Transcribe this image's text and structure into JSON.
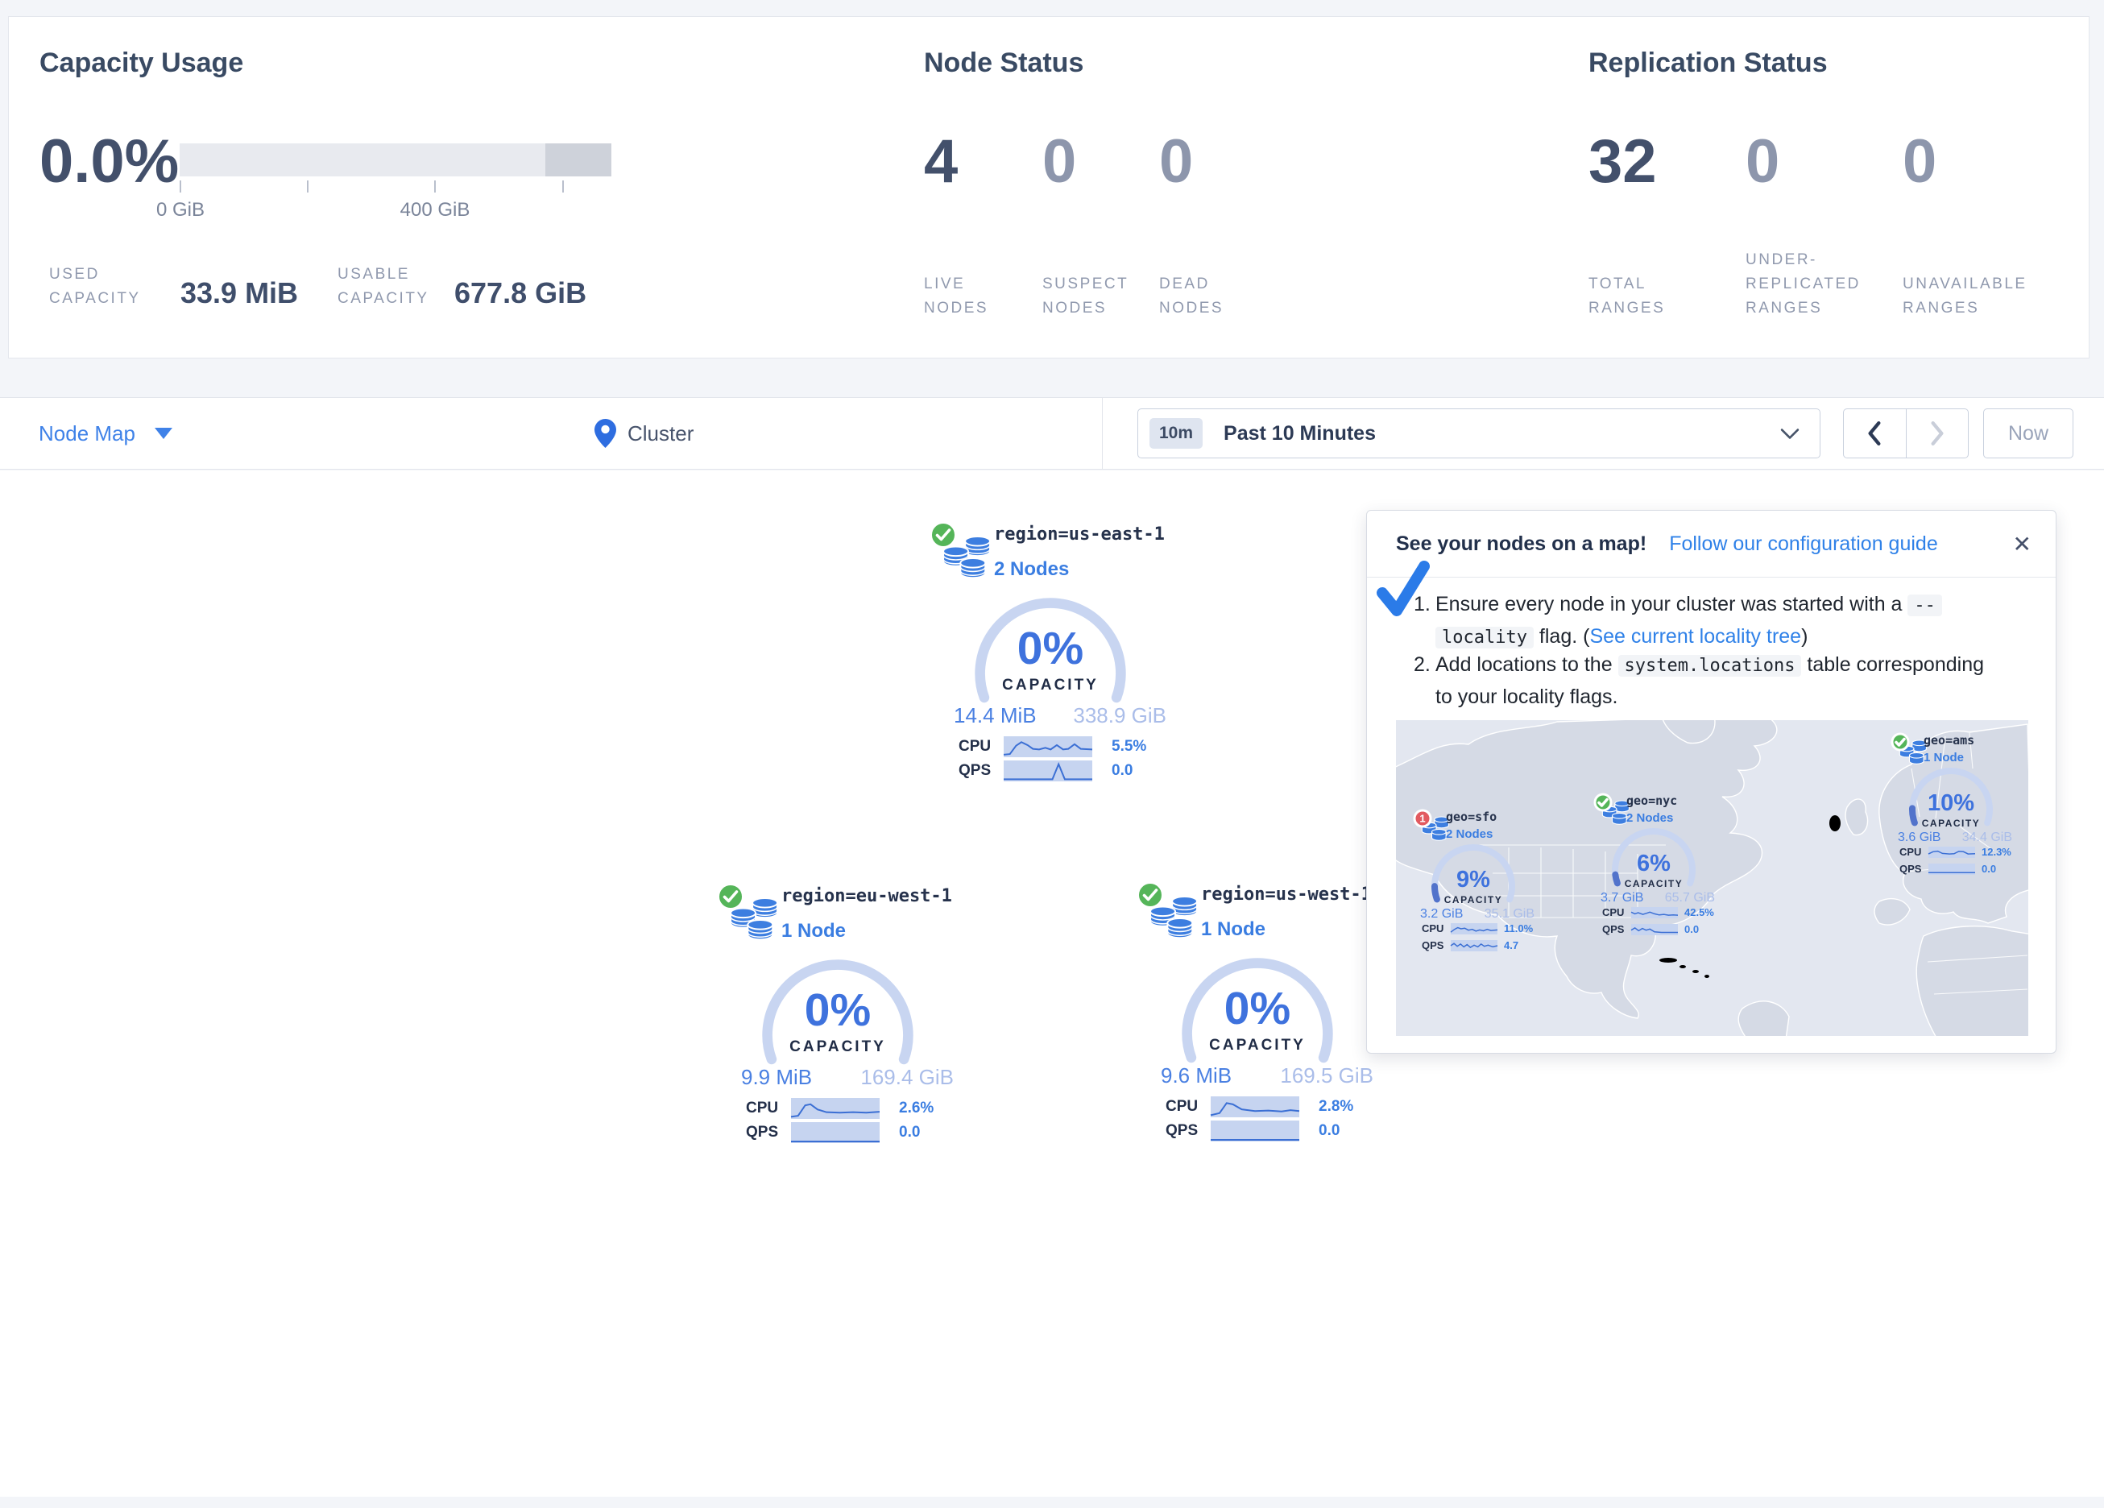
{
  "stats": {
    "capacity": {
      "title": "Capacity Usage",
      "percent": "0.0%",
      "tick0": "0 GiB",
      "tick1": "400 GiB",
      "used_label_top": "USED",
      "used_label_bottom": "CAPACITY",
      "used_value": "33.9 MiB",
      "usable_label_top": "USABLE",
      "usable_label_bottom": "CAPACITY",
      "usable_value": "677.8 GiB"
    },
    "nodes": {
      "title": "Node Status",
      "items": [
        {
          "value": "4",
          "label_lines": [
            "LIVE",
            "NODES"
          ]
        },
        {
          "value": "0",
          "label_lines": [
            "SUSPECT",
            "NODES"
          ]
        },
        {
          "value": "0",
          "label_lines": [
            "DEAD",
            "NODES"
          ]
        }
      ]
    },
    "replication": {
      "title": "Replication Status",
      "items": [
        {
          "value": "32",
          "label_lines": [
            "TOTAL",
            "RANGES"
          ]
        },
        {
          "value": "0",
          "label_lines": [
            "UNDER-",
            "REPLICATED",
            "RANGES"
          ]
        },
        {
          "value": "0",
          "label_lines": [
            "UNAVAILABLE",
            "RANGES"
          ]
        }
      ]
    }
  },
  "toolbar": {
    "view_label": "Node Map",
    "breadcrumb": "Cluster",
    "time_badge": "10m",
    "time_label": "Past 10 Minutes",
    "now_label": "Now"
  },
  "labels": {
    "capacity": "CAPACITY",
    "cpu": "CPU",
    "qps": "QPS"
  },
  "regions": [
    {
      "name": "region=us-east-1",
      "nodes": "2 Nodes",
      "percent_label": "0%",
      "pct": 0,
      "used": "14.4 MiB",
      "total": "338.9 GiB",
      "cpu_value": "5.5%",
      "qps_value": "0.0",
      "cpu_spark": [
        [
          0,
          0.88
        ],
        [
          0.07,
          0.85
        ],
        [
          0.14,
          0.45
        ],
        [
          0.2,
          0.28
        ],
        [
          0.27,
          0.42
        ],
        [
          0.33,
          0.6
        ],
        [
          0.4,
          0.63
        ],
        [
          0.47,
          0.55
        ],
        [
          0.53,
          0.63
        ],
        [
          0.6,
          0.42
        ],
        [
          0.67,
          0.63
        ],
        [
          0.73,
          0.6
        ],
        [
          0.8,
          0.38
        ],
        [
          0.87,
          0.6
        ],
        [
          1,
          0.63
        ]
      ],
      "qps_spark": [
        [
          0,
          0.9
        ],
        [
          0.55,
          0.9
        ],
        [
          0.62,
          0.18
        ],
        [
          0.69,
          0.9
        ],
        [
          1,
          0.9
        ]
      ]
    },
    {
      "name": "region=eu-west-1",
      "nodes": "1 Node",
      "percent_label": "0%",
      "pct": 0,
      "used": "9.9 MiB",
      "total": "169.4 GiB",
      "cpu_value": "2.6%",
      "qps_value": "0.0",
      "cpu_spark": [
        [
          0,
          0.9
        ],
        [
          0.08,
          0.85
        ],
        [
          0.16,
          0.35
        ],
        [
          0.22,
          0.3
        ],
        [
          0.3,
          0.55
        ],
        [
          0.4,
          0.68
        ],
        [
          0.55,
          0.7
        ],
        [
          0.7,
          0.68
        ],
        [
          0.85,
          0.7
        ],
        [
          1,
          0.66
        ]
      ],
      "qps_spark": [
        [
          0,
          0.92
        ],
        [
          1,
          0.92
        ]
      ]
    },
    {
      "name": "region=us-west-1",
      "nodes": "1 Node",
      "percent_label": "0%",
      "pct": 0,
      "used": "9.6 MiB",
      "total": "169.5 GiB",
      "cpu_value": "2.8%",
      "qps_value": "0.0",
      "cpu_spark": [
        [
          0,
          0.9
        ],
        [
          0.1,
          0.8
        ],
        [
          0.18,
          0.32
        ],
        [
          0.25,
          0.38
        ],
        [
          0.35,
          0.62
        ],
        [
          0.5,
          0.7
        ],
        [
          0.65,
          0.68
        ],
        [
          0.8,
          0.72
        ],
        [
          0.9,
          0.66
        ],
        [
          1,
          0.7
        ]
      ],
      "qps_spark": [
        [
          0,
          0.92
        ],
        [
          1,
          0.92
        ]
      ]
    }
  ],
  "popup": {
    "title": "See your nodes on a map!",
    "link": "Follow our configuration guide",
    "close": "✕",
    "step1": {
      "num": "1.",
      "pre": "Ensure every node in your cluster was started with a ",
      "code_a": "--",
      "code_b": "locality",
      "mid": " flag. (",
      "link": "See current locality tree",
      "post": ")"
    },
    "step2": {
      "num": "2.",
      "pre": "Add locations to the ",
      "code": "system.locations",
      "post": " table corresponding to your locality flags."
    }
  },
  "geo_nodes": [
    {
      "name": "geo=sfo",
      "nodes": "2 Nodes",
      "status": "error",
      "badge": "1",
      "percent_label": "9%",
      "pct": 9,
      "used": "3.2 GiB",
      "total": "35.1 GiB",
      "cpu_value": "11.0%",
      "qps_value": "4.7",
      "cpu_spark": [
        [
          0,
          0.8
        ],
        [
          0.08,
          0.55
        ],
        [
          0.15,
          0.4
        ],
        [
          0.22,
          0.5
        ],
        [
          0.3,
          0.45
        ],
        [
          0.38,
          0.62
        ],
        [
          0.46,
          0.55
        ],
        [
          0.54,
          0.7
        ],
        [
          0.62,
          0.6
        ],
        [
          0.7,
          0.68
        ],
        [
          0.78,
          0.55
        ],
        [
          0.86,
          0.65
        ],
        [
          1,
          0.6
        ]
      ],
      "qps_spark": [
        [
          0,
          0.5
        ],
        [
          0.07,
          0.3
        ],
        [
          0.14,
          0.55
        ],
        [
          0.21,
          0.35
        ],
        [
          0.28,
          0.6
        ],
        [
          0.35,
          0.4
        ],
        [
          0.42,
          0.65
        ],
        [
          0.5,
          0.45
        ],
        [
          0.58,
          0.6
        ],
        [
          0.65,
          0.35
        ],
        [
          0.72,
          0.55
        ],
        [
          0.8,
          0.45
        ],
        [
          0.9,
          0.6
        ],
        [
          1,
          0.5
        ]
      ]
    },
    {
      "name": "geo=nyc",
      "nodes": "2 Nodes",
      "status": "ok",
      "badge": "",
      "percent_label": "6%",
      "pct": 6,
      "used": "3.7 GiB",
      "total": "65.7 GiB",
      "cpu_value": "42.5%",
      "qps_value": "0.0",
      "cpu_spark": [
        [
          0,
          0.45
        ],
        [
          0.08,
          0.6
        ],
        [
          0.15,
          0.5
        ],
        [
          0.25,
          0.65
        ],
        [
          0.33,
          0.55
        ],
        [
          0.4,
          0.45
        ],
        [
          0.5,
          0.6
        ],
        [
          0.6,
          0.7
        ],
        [
          0.7,
          0.65
        ],
        [
          0.8,
          0.72
        ],
        [
          0.9,
          0.7
        ],
        [
          1,
          0.72
        ]
      ],
      "qps_spark": [
        [
          0,
          0.55
        ],
        [
          0.08,
          0.35
        ],
        [
          0.16,
          0.6
        ],
        [
          0.24,
          0.4
        ],
        [
          0.32,
          0.55
        ],
        [
          0.4,
          0.45
        ],
        [
          0.5,
          0.7
        ],
        [
          0.65,
          0.75
        ],
        [
          0.8,
          0.75
        ],
        [
          1,
          0.75
        ]
      ]
    },
    {
      "name": "geo=ams",
      "nodes": "1 Node",
      "status": "ok",
      "badge": "",
      "percent_label": "10%",
      "pct": 10,
      "used": "3.6 GiB",
      "total": "34.4 GiB",
      "cpu_value": "12.3%",
      "qps_value": "0.0",
      "cpu_spark": [
        [
          0,
          0.65
        ],
        [
          0.1,
          0.45
        ],
        [
          0.2,
          0.4
        ],
        [
          0.3,
          0.6
        ],
        [
          0.45,
          0.65
        ],
        [
          0.55,
          0.63
        ],
        [
          0.65,
          0.42
        ],
        [
          0.75,
          0.45
        ],
        [
          0.85,
          0.65
        ],
        [
          1,
          0.63
        ]
      ],
      "qps_spark": [
        [
          0,
          0.8
        ],
        [
          1,
          0.8
        ]
      ]
    }
  ],
  "colors": {
    "accent_blue": "#3a7de1",
    "link_blue": "#2f81e8",
    "gauge_light": "#c8d5f1",
    "gauge_used": "#5273cb",
    "ok_green": "#55b559",
    "error_red": "#e25a60"
  }
}
